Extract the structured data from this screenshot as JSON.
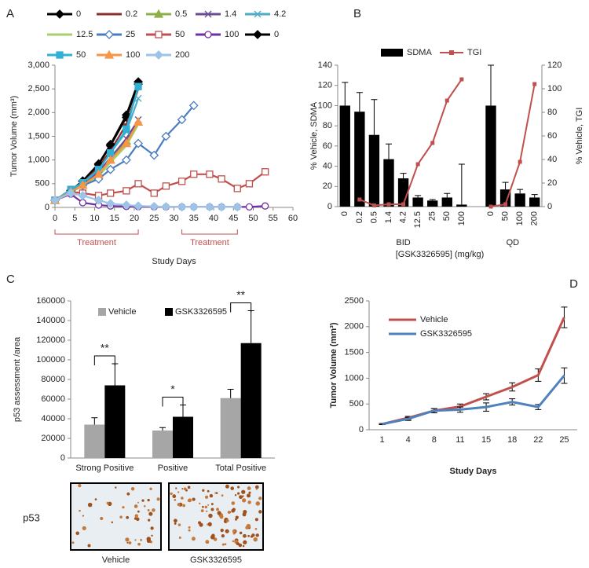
{
  "chart_data": [
    {
      "type": "line",
      "panel": "A",
      "x_label": "Study Days",
      "y_label": "Tumor Volume (mm³)",
      "legend": "top",
      "xlim": [
        0,
        60
      ],
      "xticks": [
        0,
        5,
        10,
        15,
        20,
        25,
        30,
        35,
        40,
        45,
        50,
        55,
        60
      ],
      "ylim": [
        0,
        3000
      ],
      "yticks": [
        0,
        500,
        {
          "value": 1000,
          "label": "1,000"
        },
        {
          "value": 1500,
          "label": "1,500"
        },
        {
          "value": 2000,
          "label": "2,000"
        },
        {
          "value": 2500,
          "label": "2,500"
        },
        {
          "value": 3000,
          "label": "3,000"
        }
      ],
      "annotations": [
        {
          "text": "Treatment",
          "x": [
            0,
            21
          ]
        },
        {
          "text": "Treatment",
          "x": [
            32,
            46
          ]
        }
      ],
      "series": [
        {
          "name": "0",
          "color": "#000000",
          "marker": "diamond",
          "marker_fill": true,
          "x": [
            0,
            4,
            7,
            11,
            14,
            18,
            21
          ],
          "values": [
            150,
            350,
            550,
            900,
            1300,
            1900,
            2600
          ]
        },
        {
          "name": "0.2",
          "color": "#8b2e2e",
          "marker": "dash",
          "marker_fill": true,
          "x": [
            0,
            4,
            7,
            11,
            14,
            18,
            21
          ],
          "values": [
            150,
            340,
            520,
            850,
            1200,
            1750,
            2500
          ]
        },
        {
          "name": "0.5",
          "color": "#8db04a",
          "marker": "triangle",
          "marker_fill": true,
          "x": [
            0,
            4,
            7,
            11,
            14,
            18,
            21
          ],
          "values": [
            150,
            330,
            470,
            720,
            1000,
            1400,
            1800
          ]
        },
        {
          "name": "1.4",
          "color": "#6a4c93",
          "marker": "x",
          "marker_fill": false,
          "x": [
            0,
            4,
            7,
            11,
            14,
            18,
            21
          ],
          "values": [
            150,
            330,
            480,
            750,
            1050,
            1450,
            1850
          ]
        },
        {
          "name": "4.2",
          "color": "#4bacc6",
          "marker": "x",
          "marker_fill": false,
          "x": [
            0,
            4,
            7,
            11,
            14,
            18,
            21
          ],
          "values": [
            150,
            340,
            500,
            800,
            1150,
            1600,
            2300
          ]
        },
        {
          "name": "12.5",
          "color": "#a9cf6a",
          "marker": "none",
          "marker_fill": false,
          "x": [
            0,
            4,
            7,
            11,
            14,
            18,
            21
          ],
          "values": [
            150,
            320,
            450,
            650,
            950,
            1300,
            1750
          ]
        },
        {
          "name": "25",
          "color": "#4a7cc0",
          "marker": "diamond",
          "marker_fill": false,
          "x": [
            0,
            4,
            7,
            11,
            14,
            18,
            21,
            25,
            28,
            32,
            35
          ],
          "values": [
            150,
            330,
            460,
            600,
            800,
            1000,
            1350,
            1100,
            1500,
            1850,
            2150
          ]
        },
        {
          "name": "50",
          "color": "#c0504d",
          "marker": "square",
          "marker_fill": false,
          "x": [
            0,
            4,
            7,
            11,
            14,
            18,
            21,
            25,
            28,
            32,
            35,
            39,
            42,
            46,
            49,
            53
          ],
          "values": [
            150,
            330,
            300,
            250,
            300,
            350,
            500,
            300,
            450,
            550,
            700,
            700,
            600,
            400,
            500,
            750
          ]
        },
        {
          "name": "100",
          "color": "#7030a0",
          "marker": "circle",
          "marker_fill": false,
          "x": [
            0,
            4,
            7,
            11,
            14,
            18,
            21,
            25,
            28,
            32,
            35,
            39,
            42,
            46,
            49,
            53
          ],
          "values": [
            150,
            280,
            100,
            50,
            30,
            20,
            15,
            10,
            10,
            10,
            10,
            10,
            10,
            10,
            10,
            30
          ]
        },
        {
          "name": "0",
          "color": "#000000",
          "marker": "diamond",
          "marker_fill": true,
          "x": [
            0,
            4,
            7,
            11,
            14,
            18,
            21
          ],
          "values": [
            150,
            360,
            560,
            920,
            1330,
            1950,
            2650
          ]
        },
        {
          "name": "50",
          "color": "#31b0d5",
          "marker": "square",
          "marker_fill": true,
          "x": [
            0,
            4,
            7,
            11,
            14,
            18,
            21
          ],
          "values": [
            150,
            380,
            520,
            800,
            1150,
            1650,
            2550
          ]
        },
        {
          "name": "100",
          "color": "#f79646",
          "marker": "triangle",
          "marker_fill": true,
          "x": [
            0,
            4,
            7,
            11,
            14,
            18,
            21
          ],
          "values": [
            150,
            330,
            470,
            700,
            1000,
            1350,
            1800
          ]
        },
        {
          "name": "200",
          "color": "#9dc3e6",
          "marker": "diamond",
          "marker_fill": true,
          "x": [
            0,
            4,
            7,
            11,
            14,
            18,
            21,
            25,
            28,
            32,
            35,
            39,
            42,
            46
          ],
          "values": [
            150,
            300,
            250,
            150,
            80,
            50,
            30,
            20,
            15,
            10,
            10,
            10,
            10,
            10
          ]
        }
      ]
    },
    {
      "type": "bar_line",
      "panel": "B",
      "x_label": "[GSK3326595]  (mg/kg)",
      "y_label": "% Vehicle, SDMA",
      "y2_label": "% Vehicle, TGI",
      "legend": "top",
      "categories": [
        "0",
        "0.2",
        "0.5",
        "1.4",
        "4.2",
        "12.5",
        "25",
        "50",
        "100",
        null,
        "0",
        "50",
        "100",
        "200"
      ],
      "groups": [
        "BID",
        "QD"
      ],
      "ylim": [
        0,
        140
      ],
      "yticks": [
        0,
        20,
        40,
        60,
        80,
        100,
        120,
        140
      ],
      "y2lim": [
        0,
        120
      ],
      "y2ticks": [
        0,
        20,
        40,
        60,
        80,
        100,
        120
      ],
      "series": [
        {
          "name": "SDMA",
          "type": "bar",
          "color": "#000000",
          "values": [
            100,
            94,
            71,
            47,
            28,
            9,
            6,
            9,
            2,
            null,
            100,
            17,
            13,
            9
          ],
          "errors": [
            23,
            19,
            35,
            15,
            5,
            2,
            1,
            4,
            40,
            null,
            40,
            7,
            4,
            3
          ]
        },
        {
          "name": "TGI",
          "type": "line",
          "axis": "y2",
          "color": "#c0504d",
          "values": [
            null,
            6,
            1,
            2,
            2,
            36,
            54,
            90,
            108,
            null,
            0,
            2,
            38,
            104
          ]
        }
      ]
    },
    {
      "type": "bar",
      "panel": "C",
      "y_label": "p53 assessment /area",
      "legend": "top-left",
      "error_bars": "plus",
      "categories": [
        "Strong Positive",
        "Positive",
        "Total Positive"
      ],
      "ylim": [
        0,
        160000
      ],
      "yticks": [
        0,
        20000,
        40000,
        60000,
        80000,
        100000,
        120000,
        140000,
        160000
      ],
      "significance": [
        "**",
        "*",
        "**"
      ],
      "series": [
        {
          "name": "Vehicle",
          "color": "#a6a6a6",
          "values": [
            34000,
            28000,
            61000
          ],
          "errors": [
            7000,
            3000,
            9000
          ]
        },
        {
          "name": "GSK3326595",
          "color": "#000000",
          "values": [
            74000,
            42000,
            117000
          ],
          "errors": [
            22000,
            12000,
            33000
          ]
        }
      ],
      "images": {
        "row_label": "p53",
        "captions": [
          "Vehicle",
          "GSK3326595"
        ]
      }
    },
    {
      "type": "line",
      "panel": "D",
      "x_label": "Study Days",
      "y_label": "Tumor Volume (mm³)",
      "legend": "top-left",
      "error_bars": "both",
      "categories": [
        "1",
        "4",
        "8",
        "11",
        "15",
        "18",
        "22",
        "25"
      ],
      "ylim": [
        0,
        2500
      ],
      "yticks": [
        0,
        500,
        1000,
        1500,
        2000,
        2500
      ],
      "series": [
        {
          "name": "Vehicle",
          "color": "#c0504d",
          "values": [
            110,
            230,
            370,
            450,
            640,
            830,
            1060,
            2180
          ],
          "errors": [
            10,
            30,
            40,
            50,
            60,
            80,
            120,
            200
          ]
        },
        {
          "name": "GSK3326595",
          "color": "#4f81bd",
          "values": [
            110,
            210,
            370,
            390,
            440,
            540,
            440,
            1050
          ],
          "errors": [
            10,
            30,
            40,
            50,
            80,
            60,
            50,
            150
          ]
        }
      ]
    }
  ]
}
